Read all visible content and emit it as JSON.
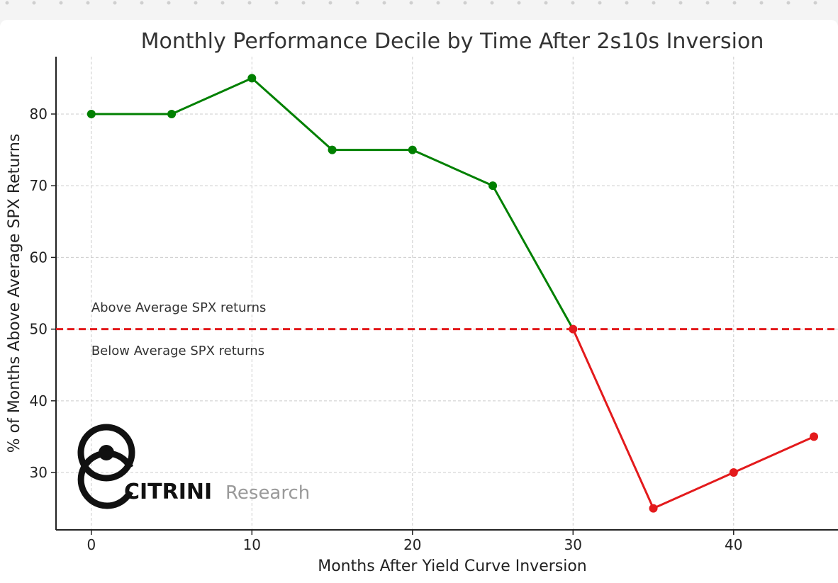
{
  "chart_data": {
    "type": "line",
    "title": "Monthly Performance Decile by Time After 2s10s Inversion",
    "xlabel": "Months After Yield Curve Inversion",
    "ylabel": "% of Months Above Average SPX Returns",
    "x": [
      0,
      5,
      10,
      15,
      20,
      25,
      30,
      35,
      40,
      45
    ],
    "y": [
      80,
      80,
      85,
      75,
      75,
      70,
      50,
      25,
      30,
      35
    ],
    "xlim": [
      -2.2,
      46.5
    ],
    "ylim": [
      22.0,
      88.0
    ],
    "xticks": [
      0,
      10,
      20,
      30,
      40
    ],
    "yticks": [
      30,
      40,
      50,
      60,
      70,
      80
    ],
    "grid": true,
    "colors": {
      "above": "#008000",
      "below": "#e31a1c",
      "reference": "#e31a1c",
      "grid": "#cccccc"
    },
    "reference_line": {
      "y": 50,
      "style": "dashed"
    },
    "annotations": [
      {
        "text": "Above Average SPX returns",
        "x": 0,
        "y": 53
      },
      {
        "text": "Below Average SPX returns",
        "x": 0,
        "y": 47
      }
    ]
  },
  "logo": {
    "brand": "CITRINI",
    "suffix": "Research"
  }
}
